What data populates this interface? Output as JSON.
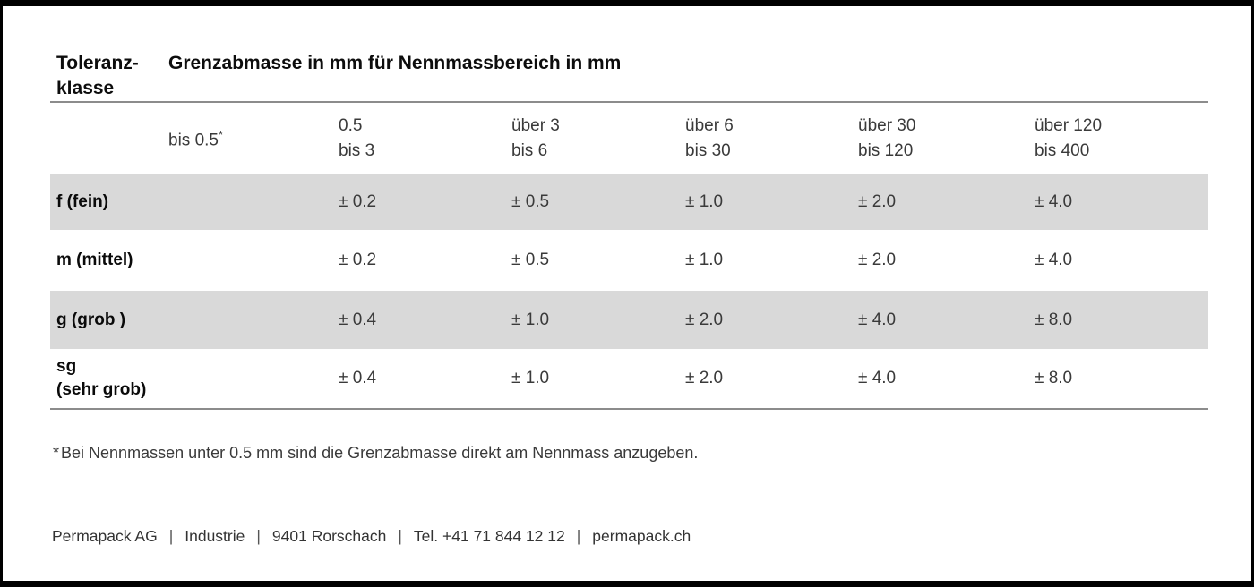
{
  "header": {
    "col_label_line1": "Toleranz-",
    "col_label_line2": "klasse",
    "title": "Grenzabmasse in mm für Nennmassbereich in mm"
  },
  "table": {
    "sup_marker": "*",
    "col_headers": [
      {
        "line1": "bis 0.5",
        "line2": ""
      },
      {
        "line1": "0.5",
        "line2": "bis 3"
      },
      {
        "line1": "über 3",
        "line2": "bis 6"
      },
      {
        "line1": "über 6",
        "line2": "bis 30"
      },
      {
        "line1": "über 30",
        "line2": "bis 120"
      },
      {
        "line1": "über 120",
        "line2": "bis 400"
      }
    ],
    "rows": [
      {
        "label": "f (fein)",
        "label2": "",
        "values": [
          "",
          "± 0.2",
          "± 0.5",
          "± 1.0",
          "± 2.0",
          "± 4.0"
        ]
      },
      {
        "label": "m (mittel)",
        "label2": "",
        "values": [
          "",
          "± 0.2",
          "± 0.5",
          "± 1.0",
          "± 2.0",
          "± 4.0"
        ]
      },
      {
        "label": "g (grob )",
        "label2": "",
        "values": [
          "",
          "± 0.4",
          "± 1.0",
          "± 2.0",
          "± 4.0",
          "± 8.0"
        ]
      },
      {
        "label": "sg",
        "label2": "(sehr grob)",
        "values": [
          "",
          "± 0.4",
          "± 1.0",
          "± 2.0",
          "± 4.0",
          "± 8.0"
        ]
      }
    ]
  },
  "footnote": {
    "marker": "*",
    "text": "Bei Nennmassen unter 0.5 mm sind die Grenzabmasse direkt am Nennmass anzugeben."
  },
  "footer": {
    "separator": "|",
    "segments": [
      "Permapack AG",
      "Industrie",
      "9401 Rorschach",
      "Tel. +41 71 844 12 12",
      "permapack.ch"
    ]
  },
  "colors": {
    "shaded_row": "#d9d9d9",
    "rule": "#8c8c8c",
    "frame": "#000000"
  }
}
